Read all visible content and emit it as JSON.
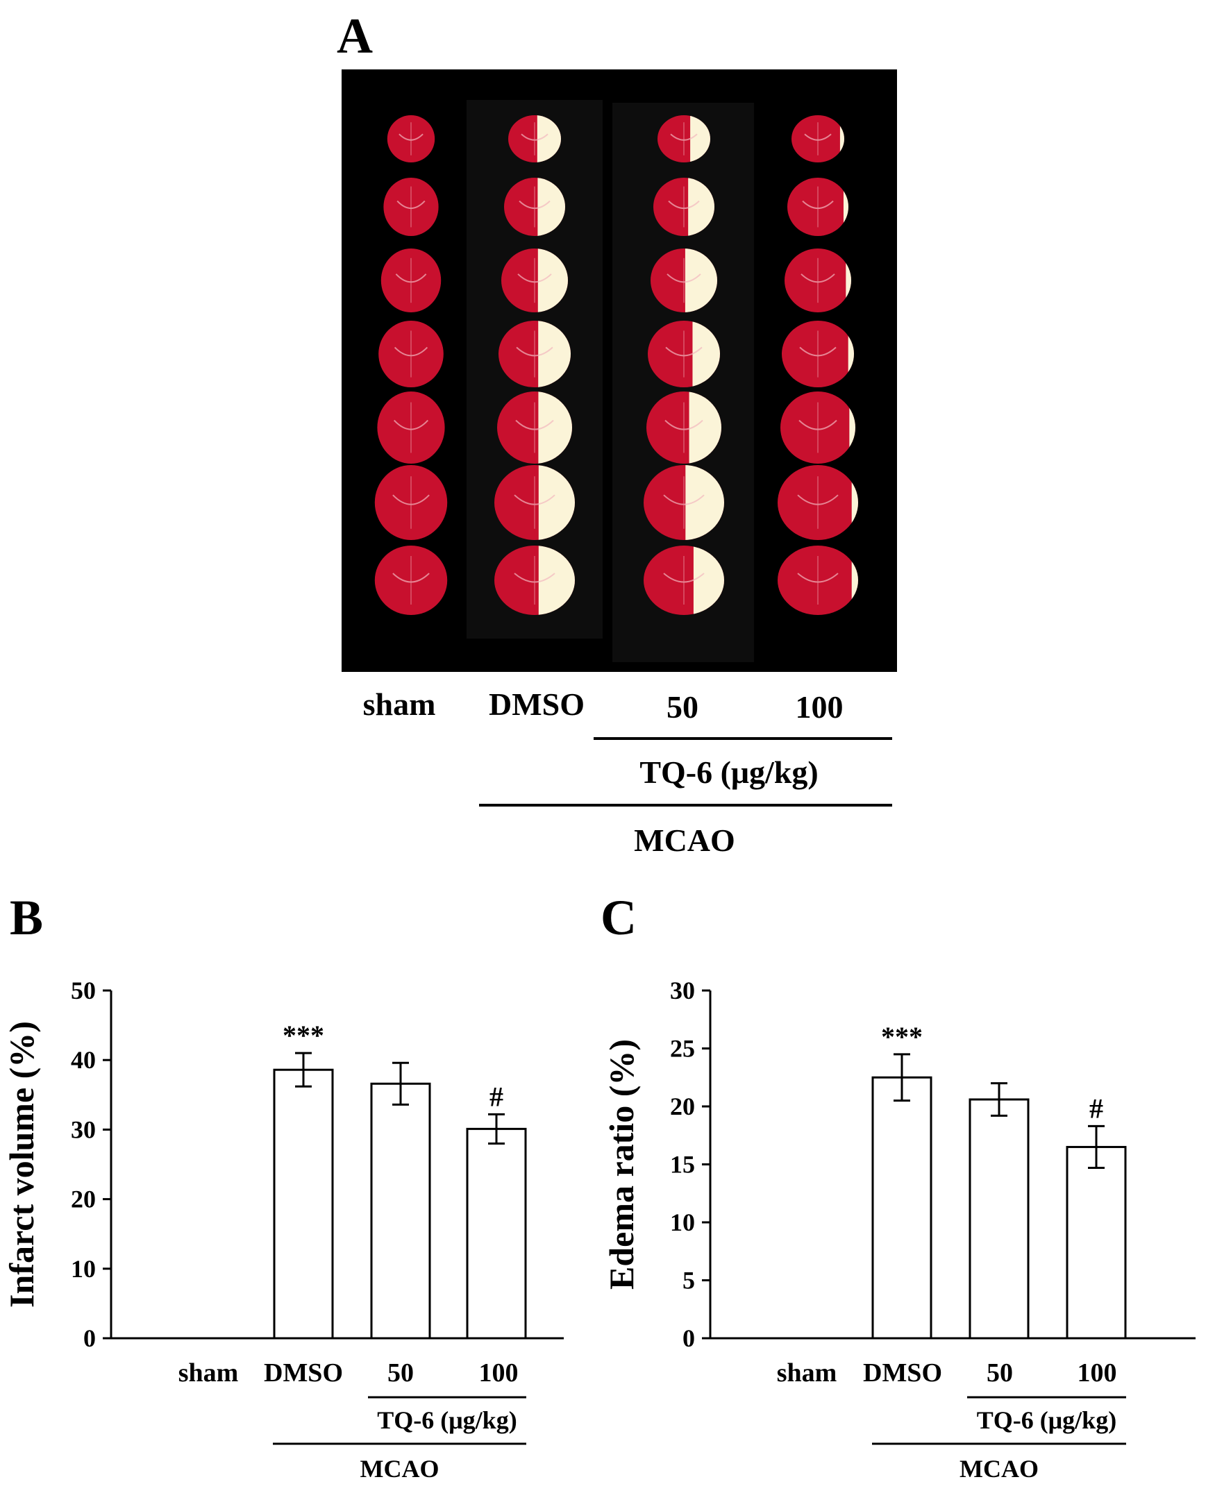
{
  "panel_a": {
    "panel_label": "A",
    "image_name": "TTC-stained coronal brain sections",
    "group_labels": [
      "sham",
      "DMSO",
      "50",
      "100"
    ],
    "treatment_label": "TQ-6 (μg/kg)",
    "model_label": "MCAO"
  },
  "colors": {
    "background": "#000000",
    "viable_tissue": "#c8102e",
    "infarct_tissue": "#fbf4d8",
    "bar_fill": "#ffffff",
    "axis": "#000000"
  },
  "chart_data": [
    {
      "panel_label": "B",
      "type": "bar",
      "ylabel": "Infarct volume (%)",
      "xlabel": "",
      "ylim": [
        0,
        50
      ],
      "yticks": [
        0,
        10,
        20,
        30,
        40,
        50
      ],
      "categories": [
        "sham",
        "DMSO",
        "50",
        "100"
      ],
      "values": [
        0,
        38.6,
        36.6,
        30.1
      ],
      "errors": [
        0,
        2.4,
        3.0,
        2.1
      ],
      "annotations": [
        "",
        "***",
        "",
        "#"
      ],
      "treatment_label": "TQ-6 (μg/kg)",
      "model_label": "MCAO"
    },
    {
      "panel_label": "C",
      "type": "bar",
      "ylabel": "Edema ratio (%)",
      "xlabel": "",
      "ylim": [
        0,
        30
      ],
      "yticks": [
        0,
        5,
        10,
        15,
        20,
        25,
        30
      ],
      "categories": [
        "sham",
        "DMSO",
        "50",
        "100"
      ],
      "values": [
        0,
        22.5,
        20.6,
        16.5
      ],
      "errors": [
        0,
        2.0,
        1.4,
        1.8
      ],
      "annotations": [
        "",
        "***",
        "",
        "#"
      ],
      "treatment_label": "TQ-6 (μg/kg)",
      "model_label": "MCAO"
    }
  ]
}
